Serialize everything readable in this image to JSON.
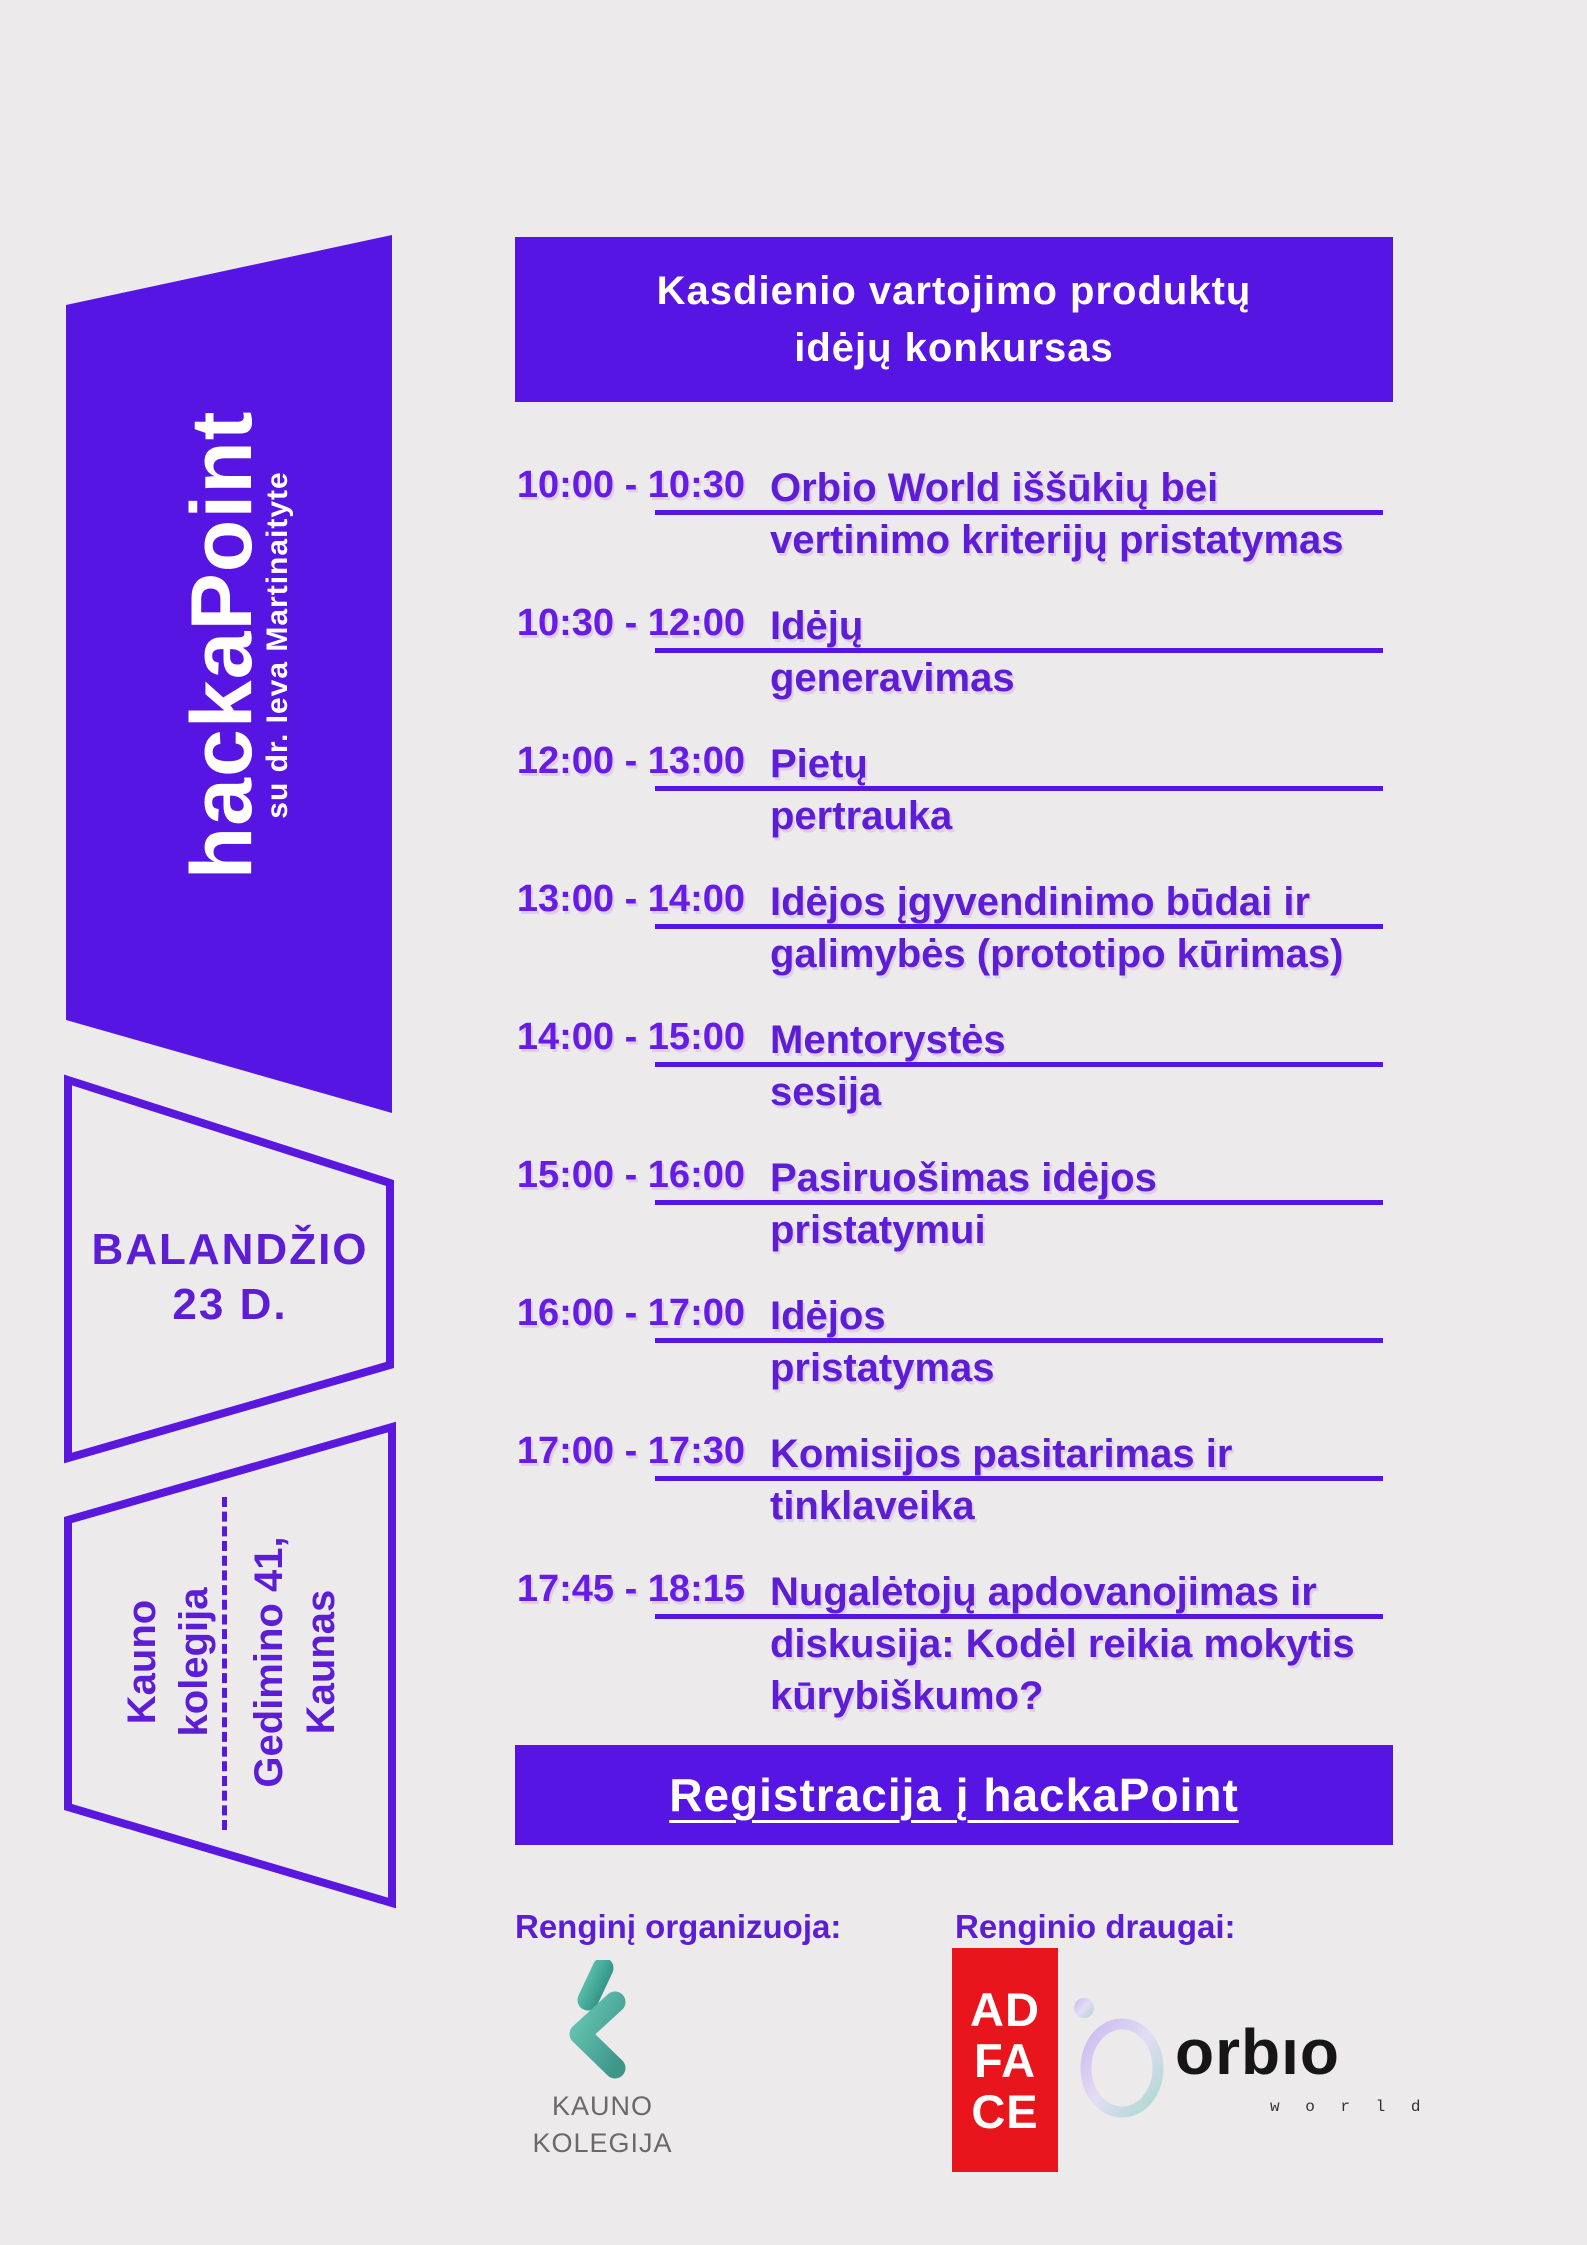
{
  "colors": {
    "background": "#ECEAEA",
    "accent_purple": "#5615E3",
    "time_purple": "#671CE5",
    "text_purple": "#5D1DD4",
    "outline_purple": "#5A18DF",
    "adface_red": "#E8161C",
    "kauno_teal": "#46B39E",
    "gray_text": "#6A686A"
  },
  "banner": {
    "title_line1": "Kasdienio vartojimo produktų",
    "title_line2": "idėjų konkursas"
  },
  "sidebar": {
    "event_name": "hackaPoint",
    "event_host": "su dr. Ieva Martinaityte",
    "date_line1": "BALANDŽIO",
    "date_line2": "23 D.",
    "venue_line1": "Kauno",
    "venue_line2": "kolegija",
    "address_line1": "Gedimino 41,",
    "address_line2": "Kaunas"
  },
  "schedule": {
    "items": [
      {
        "time": "10:00 - 10:30",
        "lines": [
          "Orbio World iššūkių bei",
          "vertinimo kriterijų pristatymas"
        ]
      },
      {
        "time": "10:30 - 12:00",
        "lines": [
          "Idėjų",
          "generavimas"
        ]
      },
      {
        "time": "12:00 - 13:00",
        "lines": [
          "Pietų",
          "pertrauka"
        ]
      },
      {
        "time": "13:00 - 14:00",
        "lines": [
          "Idėjos įgyvendinimo būdai ir",
          "galimybės (prototipo kūrimas)"
        ]
      },
      {
        "time": "14:00 - 15:00",
        "lines": [
          "Mentorystės",
          "sesija"
        ]
      },
      {
        "time": "15:00 - 16:00",
        "lines": [
          "Pasiruošimas idėjos",
          "pristatymui"
        ]
      },
      {
        "time": "16:00 - 17:00",
        "lines": [
          "Idėjos",
          "pristatymas"
        ]
      },
      {
        "time": "17:00 - 17:30",
        "lines": [
          "Komisijos pasitarimas ir",
          "tinklaveika"
        ]
      },
      {
        "time": "17:45 - 18:15",
        "lines": [
          "Nugalėtojų apdovanojimas ir",
          "diskusija: Kodėl reikia mokytis",
          "kūrybiškumo?"
        ]
      }
    ]
  },
  "registration": {
    "label": "Registracija į hackaPoint"
  },
  "footer": {
    "organizer_label": "Renginį organizuoja:",
    "partners_label": "Renginio draugai:",
    "kauno_logo_line1": "KAUNO",
    "kauno_logo_line2": "KOLEGIJA",
    "adface_line1": "AD",
    "adface_line2": "FA",
    "adface_line3": "CE",
    "orbio_name": "orbıo",
    "orbio_sub": "w o r l d"
  }
}
